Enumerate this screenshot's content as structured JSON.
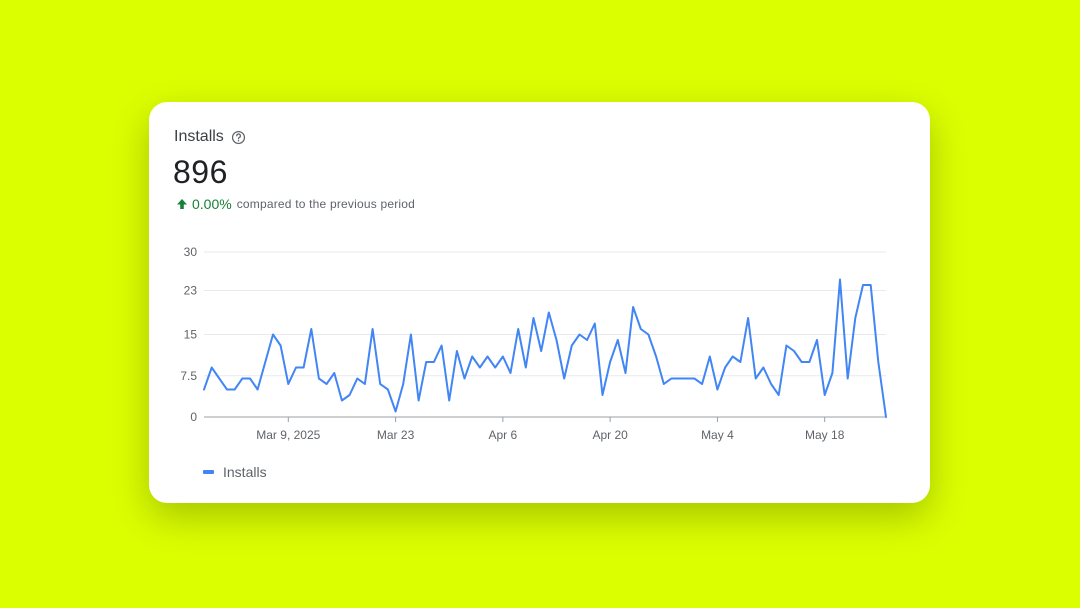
{
  "card": {
    "title": "Installs",
    "help_icon": "help-circle-icon",
    "value": "896",
    "change_icon": "arrow-up-icon",
    "change_percent": "0.00%",
    "change_text": "compared to the previous period"
  },
  "colors": {
    "background": "#dcff00",
    "line": "#4285f4",
    "positive": "#188038"
  },
  "legend": {
    "label": "Installs"
  },
  "chart_data": {
    "type": "line",
    "title": "",
    "xlabel": "",
    "ylabel": "",
    "ylim": [
      0,
      30
    ],
    "y_ticks": [
      0,
      7.5,
      15,
      23,
      30
    ],
    "y_tick_labels": [
      "0",
      "7.5",
      "15",
      "23",
      "30"
    ],
    "x_tick_labels": [
      "Mar 9, 2025",
      "Mar 23",
      "Apr 6",
      "Apr 20",
      "May 4",
      "May 18"
    ],
    "x_tick_index": [
      11,
      25,
      39,
      53,
      67,
      81
    ],
    "legend_position": "bottom-left",
    "grid": true,
    "series": [
      {
        "name": "Installs",
        "values": [
          5,
          9,
          7,
          5,
          5,
          7,
          7,
          5,
          10,
          15,
          13,
          6,
          9,
          9,
          16,
          7,
          6,
          8,
          3,
          4,
          7,
          6,
          16,
          6,
          5,
          1,
          6,
          15,
          3,
          10,
          10,
          13,
          3,
          12,
          7,
          11,
          9,
          11,
          9,
          11,
          8,
          16,
          9,
          18,
          12,
          19,
          14,
          7,
          13,
          15,
          14,
          17,
          4,
          10,
          14,
          8,
          20,
          16,
          15,
          11,
          6,
          7,
          7,
          7,
          7,
          6,
          11,
          5,
          9,
          11,
          10,
          18,
          7,
          9,
          6,
          4,
          13,
          12,
          10,
          10,
          14,
          4,
          8,
          25,
          7,
          18,
          24,
          24,
          10,
          0
        ]
      }
    ]
  }
}
